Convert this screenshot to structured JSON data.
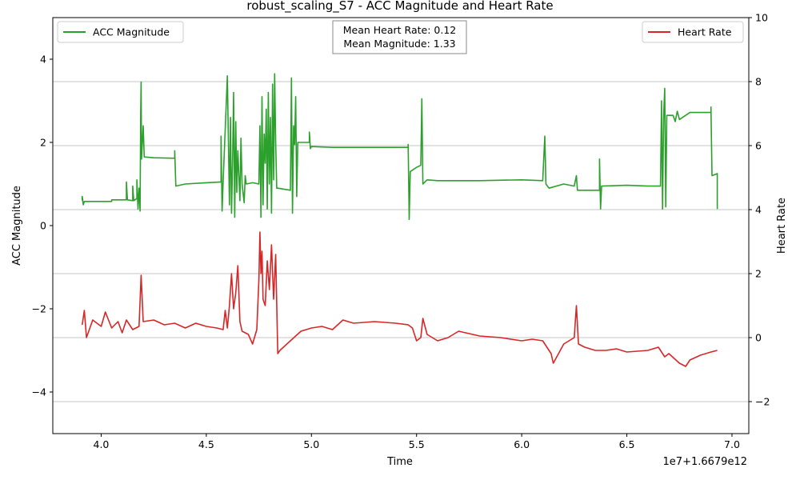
{
  "chart_data": {
    "type": "line",
    "title": "robust_scaling_S7 - ACC Magnitude and Heart Rate",
    "xlabel": "Time",
    "x_offset_label": "1e7+1.6679e12",
    "xlim": [
      3.77,
      7.08
    ],
    "x_ticks": [
      "4.0",
      "4.5",
      "5.0",
      "5.5",
      "6.0",
      "6.5",
      "7.0"
    ],
    "x_tick_values": [
      4.0,
      4.5,
      5.0,
      5.5,
      6.0,
      6.5,
      7.0
    ],
    "left_axis": {
      "label": "ACC Magnitude",
      "ylim": [
        -5,
        5
      ],
      "ticks": [
        "−4",
        "−2",
        "0",
        "2",
        "4"
      ],
      "tick_values": [
        -4,
        -2,
        0,
        2,
        4
      ]
    },
    "right_axis": {
      "label": "Heart Rate",
      "ylim": [
        -3,
        10
      ],
      "ticks": [
        "−2",
        "0",
        "2",
        "4",
        "6",
        "8",
        "10"
      ],
      "tick_values": [
        -2,
        0,
        2,
        4,
        6,
        8,
        10
      ]
    },
    "grid": "horizontal lines on right axis",
    "series": [
      {
        "name": "ACC Magnitude",
        "axis": "left",
        "color": "#2ca02c",
        "points": [
          [
            3.91,
            0.6
          ],
          [
            3.91,
            0.7
          ],
          [
            3.915,
            0.5
          ],
          [
            3.92,
            0.58
          ],
          [
            4.05,
            0.58
          ],
          [
            4.05,
            0.62
          ],
          [
            4.12,
            0.62
          ],
          [
            4.12,
            1.05
          ],
          [
            4.125,
            0.62
          ],
          [
            4.15,
            0.6
          ],
          [
            4.15,
            0.95
          ],
          [
            4.155,
            0.6
          ],
          [
            4.17,
            0.65
          ],
          [
            4.17,
            1.1
          ],
          [
            4.175,
            0.4
          ],
          [
            4.18,
            0.9
          ],
          [
            4.185,
            0.35
          ],
          [
            4.188,
            2.75
          ],
          [
            4.19,
            3.45
          ],
          [
            4.192,
            1.6
          ],
          [
            4.2,
            2.4
          ],
          [
            4.205,
            1.65
          ],
          [
            4.25,
            1.63
          ],
          [
            4.35,
            1.62
          ],
          [
            4.35,
            1.8
          ],
          [
            4.355,
            0.95
          ],
          [
            4.4,
            1.0
          ],
          [
            4.5,
            1.03
          ],
          [
            4.57,
            1.05
          ],
          [
            4.57,
            2.15
          ],
          [
            4.575,
            0.35
          ],
          [
            4.58,
            1.05
          ],
          [
            4.6,
            3.6
          ],
          [
            4.61,
            0.5
          ],
          [
            4.615,
            2.6
          ],
          [
            4.62,
            0.3
          ],
          [
            4.625,
            1.5
          ],
          [
            4.63,
            3.2
          ],
          [
            4.635,
            0.2
          ],
          [
            4.64,
            2.5
          ],
          [
            4.645,
            0.8
          ],
          [
            4.65,
            1.8
          ],
          [
            4.66,
            0.6
          ],
          [
            4.665,
            2.1
          ],
          [
            4.67,
            1.0
          ],
          [
            4.68,
            0.55
          ],
          [
            4.685,
            1.2
          ],
          [
            4.69,
            1.0
          ],
          [
            4.72,
            1.03
          ],
          [
            4.75,
            1.0
          ],
          [
            4.755,
            2.4
          ],
          [
            4.76,
            0.2
          ],
          [
            4.765,
            3.1
          ],
          [
            4.77,
            0.5
          ],
          [
            4.775,
            2.2
          ],
          [
            4.78,
            1.5
          ],
          [
            4.785,
            2.8
          ],
          [
            4.79,
            0.4
          ],
          [
            4.795,
            3.2
          ],
          [
            4.8,
            1.0
          ],
          [
            4.805,
            2.6
          ],
          [
            4.81,
            0.3
          ],
          [
            4.815,
            3.4
          ],
          [
            4.82,
            1.1
          ],
          [
            4.825,
            3.65
          ],
          [
            4.83,
            2.0
          ],
          [
            4.835,
            0.9
          ],
          [
            4.84,
            0.9
          ],
          [
            4.9,
            0.85
          ],
          [
            4.905,
            3.55
          ],
          [
            4.91,
            0.3
          ],
          [
            4.915,
            2.4
          ],
          [
            4.92,
            1.95
          ],
          [
            4.925,
            3.1
          ],
          [
            4.93,
            0.7
          ],
          [
            4.935,
            2.0
          ],
          [
            4.99,
            2.0
          ],
          [
            4.99,
            2.25
          ],
          [
            4.995,
            1.85
          ],
          [
            5.0,
            1.9
          ],
          [
            5.1,
            1.88
          ],
          [
            5.3,
            1.88
          ],
          [
            5.46,
            1.88
          ],
          [
            5.46,
            1.95
          ],
          [
            5.465,
            0.15
          ],
          [
            5.47,
            1.3
          ],
          [
            5.5,
            1.4
          ],
          [
            5.52,
            1.45
          ],
          [
            5.525,
            3.05
          ],
          [
            5.53,
            1.0
          ],
          [
            5.55,
            1.1
          ],
          [
            5.6,
            1.08
          ],
          [
            5.8,
            1.08
          ],
          [
            6.0,
            1.1
          ],
          [
            6.1,
            1.08
          ],
          [
            6.11,
            2.15
          ],
          [
            6.115,
            1.0
          ],
          [
            6.13,
            0.9
          ],
          [
            6.2,
            1.0
          ],
          [
            6.25,
            0.95
          ],
          [
            6.26,
            1.2
          ],
          [
            6.265,
            0.85
          ],
          [
            6.3,
            0.85
          ],
          [
            6.37,
            0.85
          ],
          [
            6.37,
            1.6
          ],
          [
            6.375,
            0.4
          ],
          [
            6.38,
            0.95
          ],
          [
            6.5,
            0.97
          ],
          [
            6.6,
            0.95
          ],
          [
            6.66,
            0.95
          ],
          [
            6.665,
            3.0
          ],
          [
            6.67,
            0.4
          ],
          [
            6.675,
            2.6
          ],
          [
            6.68,
            3.3
          ],
          [
            6.685,
            0.45
          ],
          [
            6.69,
            2.65
          ],
          [
            6.72,
            2.65
          ],
          [
            6.73,
            2.5
          ],
          [
            6.74,
            2.75
          ],
          [
            6.75,
            2.55
          ],
          [
            6.8,
            2.72
          ],
          [
            6.85,
            2.72
          ],
          [
            6.9,
            2.72
          ],
          [
            6.9,
            2.85
          ],
          [
            6.905,
            1.2
          ],
          [
            6.93,
            1.25
          ],
          [
            6.93,
            0.4
          ]
        ]
      },
      {
        "name": "Heart Rate",
        "axis": "right",
        "color": "#d62728",
        "points": [
          [
            3.91,
            0.4
          ],
          [
            3.92,
            0.85
          ],
          [
            3.93,
            0.0
          ],
          [
            3.96,
            0.55
          ],
          [
            4.0,
            0.35
          ],
          [
            4.02,
            0.8
          ],
          [
            4.05,
            0.3
          ],
          [
            4.08,
            0.5
          ],
          [
            4.1,
            0.15
          ],
          [
            4.12,
            0.55
          ],
          [
            4.15,
            0.25
          ],
          [
            4.18,
            0.35
          ],
          [
            4.19,
            1.95
          ],
          [
            4.2,
            0.5
          ],
          [
            4.25,
            0.55
          ],
          [
            4.3,
            0.4
          ],
          [
            4.35,
            0.45
          ],
          [
            4.4,
            0.3
          ],
          [
            4.45,
            0.45
          ],
          [
            4.5,
            0.35
          ],
          [
            4.55,
            0.3
          ],
          [
            4.58,
            0.25
          ],
          [
            4.59,
            0.85
          ],
          [
            4.6,
            0.3
          ],
          [
            4.61,
            1.0
          ],
          [
            4.62,
            2.0
          ],
          [
            4.63,
            0.9
          ],
          [
            4.64,
            1.4
          ],
          [
            4.65,
            2.25
          ],
          [
            4.66,
            0.5
          ],
          [
            4.67,
            0.2
          ],
          [
            4.7,
            0.1
          ],
          [
            4.72,
            -0.2
          ],
          [
            4.74,
            0.25
          ],
          [
            4.75,
            1.8
          ],
          [
            4.755,
            3.3
          ],
          [
            4.76,
            2.0
          ],
          [
            4.765,
            2.7
          ],
          [
            4.77,
            1.2
          ],
          [
            4.78,
            1.0
          ],
          [
            4.79,
            2.4
          ],
          [
            4.8,
            1.5
          ],
          [
            4.81,
            2.9
          ],
          [
            4.82,
            1.2
          ],
          [
            4.83,
            2.6
          ],
          [
            4.84,
            -0.5
          ],
          [
            4.85,
            -0.4
          ],
          [
            4.9,
            -0.1
          ],
          [
            4.95,
            0.2
          ],
          [
            5.0,
            0.3
          ],
          [
            5.05,
            0.35
          ],
          [
            5.1,
            0.25
          ],
          [
            5.15,
            0.55
          ],
          [
            5.2,
            0.45
          ],
          [
            5.3,
            0.5
          ],
          [
            5.4,
            0.45
          ],
          [
            5.46,
            0.4
          ],
          [
            5.48,
            0.3
          ],
          [
            5.5,
            -0.1
          ],
          [
            5.52,
            0.0
          ],
          [
            5.53,
            0.6
          ],
          [
            5.55,
            0.1
          ],
          [
            5.6,
            -0.1
          ],
          [
            5.65,
            0.0
          ],
          [
            5.7,
            0.2
          ],
          [
            5.8,
            0.05
          ],
          [
            5.9,
            0.0
          ],
          [
            6.0,
            -0.1
          ],
          [
            6.05,
            -0.05
          ],
          [
            6.1,
            -0.1
          ],
          [
            6.14,
            -0.5
          ],
          [
            6.15,
            -0.8
          ],
          [
            6.2,
            -0.2
          ],
          [
            6.25,
            0.0
          ],
          [
            6.26,
            1.0
          ],
          [
            6.27,
            -0.2
          ],
          [
            6.3,
            -0.3
          ],
          [
            6.35,
            -0.4
          ],
          [
            6.4,
            -0.4
          ],
          [
            6.45,
            -0.35
          ],
          [
            6.5,
            -0.45
          ],
          [
            6.6,
            -0.4
          ],
          [
            6.65,
            -0.3
          ],
          [
            6.68,
            -0.6
          ],
          [
            6.7,
            -0.5
          ],
          [
            6.75,
            -0.8
          ],
          [
            6.78,
            -0.9
          ],
          [
            6.8,
            -0.7
          ],
          [
            6.85,
            -0.55
          ],
          [
            6.9,
            -0.45
          ],
          [
            6.93,
            -0.4
          ]
        ]
      }
    ],
    "legends": [
      {
        "label": "ACC Magnitude",
        "placement": "top-left",
        "color": "#2ca02c"
      },
      {
        "label": "Heart Rate",
        "placement": "top-right",
        "color": "#d62728"
      }
    ],
    "annotation": {
      "line1": "Mean Heart Rate: 0.12",
      "line2": "Mean Magnitude: 1.33",
      "placement": "top-center"
    }
  }
}
